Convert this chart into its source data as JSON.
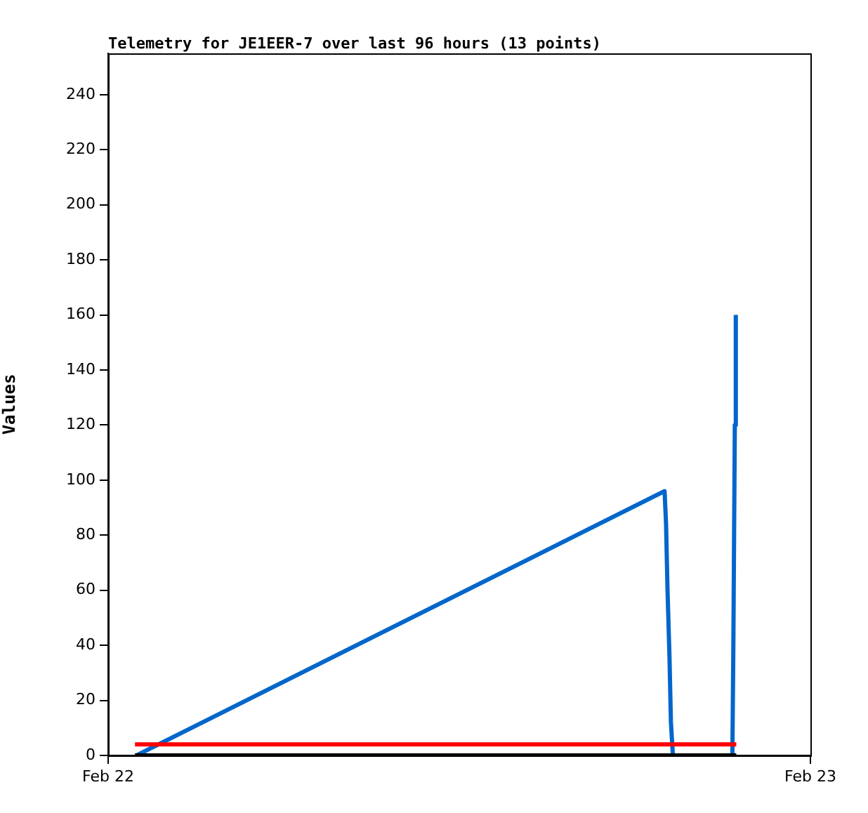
{
  "chart_data": {
    "type": "line",
    "title": "Telemetry for JE1EER-7 over last 96 hours (13 points)",
    "ylabel": "Values",
    "xlim": [
      "--02-22",
      "--02-23"
    ],
    "xticks": [
      {
        "value": "--02-22",
        "label": "Feb 22"
      },
      {
        "value": "--02-23",
        "label": "Feb 23"
      }
    ],
    "ylim": [
      0,
      255
    ],
    "yticks": [
      0,
      20,
      40,
      60,
      80,
      100,
      120,
      140,
      160,
      180,
      200,
      220,
      240
    ],
    "grid": false,
    "legend": false,
    "marker": "none",
    "line_style": "solid",
    "series": [
      {
        "color": "#000000",
        "x": [
          "--02-22T00:55",
          "--02-22T21:28"
        ],
        "values": [
          0,
          0
        ]
      },
      {
        "color": "#ff0000",
        "x": [
          "--02-22T00:55",
          "--02-22T21:28"
        ],
        "values": [
          4,
          4
        ]
      },
      {
        "color": "#0066cc",
        "x": [
          "--02-22T00:58",
          "--02-22T19:01",
          "--02-22T19:04",
          "--02-22T19:07",
          "--02-22T19:11",
          "--02-22T19:14",
          "--02-22T19:18",
          "--02-22T21:20",
          "--02-22T21:22",
          "--02-22T21:25",
          "--02-22T21:27"
        ],
        "values": [
          0,
          96,
          84,
          60,
          36,
          12,
          0,
          0,
          40,
          120,
          160
        ]
      }
    ]
  }
}
